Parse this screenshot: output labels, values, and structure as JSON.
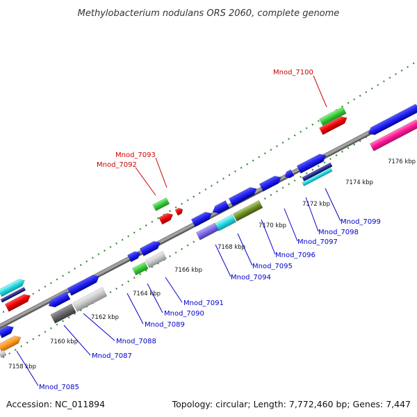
{
  "title": "Methylobacterium nodulans ORS 2060, complete genome",
  "accession": "Accession: NC_011894",
  "summary": "Topology: circular; Length: 7,772,460 bp; Genes: 7,447",
  "kbp_ticks": [
    "7158 kbp",
    "7160 kbp",
    "7162 kbp",
    "7164 kbp",
    "7166 kbp",
    "7168 kbp",
    "7170 kbp",
    "7172 kbp",
    "7174 kbp",
    "7176 kbp"
  ],
  "gene_labels": {
    "mnod_7100": "Mnod_7100",
    "mnod_7093": "Mnod_7093",
    "mnod_7092": "Mnod_7092",
    "mnod_7099": "Mnod_7099",
    "mnod_7098": "Mnod_7098",
    "mnod_7097": "Mnod_7097",
    "mnod_7096": "Mnod_7096",
    "mnod_7095": "Mnod_7095",
    "mnod_7094": "Mnod_7094",
    "mnod_7091": "Mnod_7091",
    "mnod_7090": "Mnod_7090",
    "mnod_7089": "Mnod_7089",
    "mnod_7088": "Mnod_7088",
    "mnod_7087": "Mnod_7087",
    "mnod_7085": "Mnod_7085"
  },
  "colors": {
    "red_label": "#cc0000",
    "blue_label": "#0000cc",
    "backbone": "#888888",
    "dots": "#2e8b2e"
  }
}
